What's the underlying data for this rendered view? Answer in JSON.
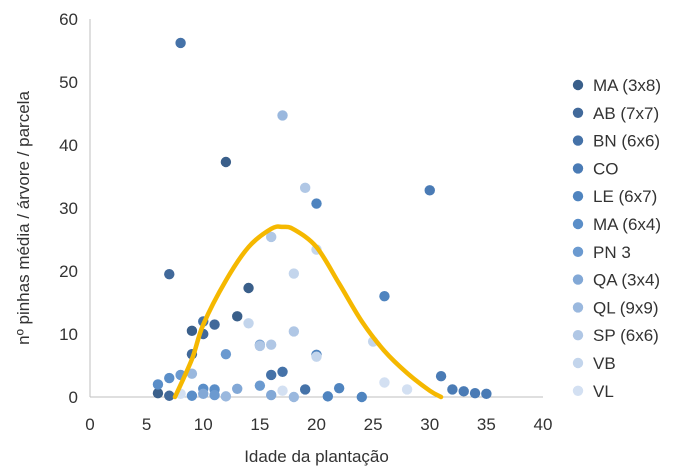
{
  "chart_data": {
    "type": "scatter",
    "title": "",
    "xlabel": "Idade da plantação",
    "ylabel": "nº pinhas média / árvore / parcela",
    "xlim": [
      0,
      40
    ],
    "ylim": [
      0,
      60
    ],
    "xticks": [
      "0",
      "5",
      "10",
      "15",
      "20",
      "25",
      "30",
      "35",
      "40"
    ],
    "yticks": [
      "0",
      "10",
      "20",
      "30",
      "40",
      "50",
      "60"
    ],
    "grid": false,
    "legend_position": "right",
    "series": [
      {
        "name": "MA (3x8)",
        "color": "#3a5f8a",
        "points": [
          [
            6,
            0.6
          ],
          [
            9,
            10.5
          ],
          [
            12,
            37.3
          ],
          [
            14,
            17.3
          ],
          [
            13,
            12.8
          ]
        ]
      },
      {
        "name": "AB (7x7)",
        "color": "#41699a",
        "points": [
          [
            7,
            0.2
          ],
          [
            10,
            10
          ],
          [
            11,
            11.5
          ],
          [
            7,
            19.5
          ],
          [
            9,
            6.8
          ]
        ]
      },
      {
        "name": "BN (6x6)",
        "color": "#4572a8",
        "points": [
          [
            8,
            56.2
          ],
          [
            10,
            12
          ],
          [
            17,
            4
          ],
          [
            16,
            3.5
          ],
          [
            19,
            1.2
          ]
        ]
      },
      {
        "name": "CO",
        "color": "#4a7bb5",
        "points": [
          [
            30,
            32.8
          ],
          [
            31,
            3.3
          ],
          [
            32,
            1.2
          ],
          [
            33,
            0.9
          ],
          [
            34,
            0.6
          ],
          [
            35,
            0.5
          ]
        ]
      },
      {
        "name": "LE (6x7)",
        "color": "#4f84bf",
        "points": [
          [
            20,
            30.7
          ],
          [
            26,
            16
          ],
          [
            20,
            6.7
          ],
          [
            22,
            1.4
          ],
          [
            21,
            0.1
          ],
          [
            24,
            0
          ]
        ]
      },
      {
        "name": "MA (6x4)",
        "color": "#5a8ec8",
        "points": [
          [
            6,
            2
          ],
          [
            7,
            3
          ],
          [
            10,
            1.3
          ],
          [
            11,
            1.2
          ],
          [
            9,
            0.2
          ]
        ]
      },
      {
        "name": "PN 3",
        "color": "#6b9ad0",
        "points": [
          [
            12,
            6.8
          ],
          [
            15,
            1.8
          ],
          [
            11,
            0.3
          ],
          [
            8,
            3.5
          ]
        ]
      },
      {
        "name": "QA (3x4)",
        "color": "#82a8d6",
        "points": [
          [
            15,
            8.3
          ],
          [
            16,
            0.3
          ],
          [
            13,
            1.3
          ],
          [
            10,
            0.5
          ]
        ]
      },
      {
        "name": "QL (9x9)",
        "color": "#9ab8de",
        "points": [
          [
            17,
            44.7
          ],
          [
            9,
            3.7
          ],
          [
            12,
            0.1
          ],
          [
            18,
            0
          ]
        ]
      },
      {
        "name": "SP (6x6)",
        "color": "#b0c7e5",
        "points": [
          [
            19,
            33.2
          ],
          [
            16,
            25.4
          ],
          [
            18,
            10.4
          ],
          [
            16,
            8.3
          ],
          [
            15,
            8.1
          ]
        ]
      },
      {
        "name": "VB",
        "color": "#c3d5ec",
        "points": [
          [
            20,
            23.4
          ],
          [
            18,
            19.6
          ],
          [
            14,
            11.7
          ],
          [
            25,
            8.8
          ],
          [
            20,
            6.4
          ]
        ]
      },
      {
        "name": "VL",
        "color": "#d3e0f2",
        "points": [
          [
            26,
            2.3
          ],
          [
            28,
            1.2
          ],
          [
            17,
            1
          ],
          [
            8,
            0.5
          ]
        ]
      }
    ],
    "trend_line": {
      "color": "#f5b800",
      "points": [
        [
          7.5,
          0
        ],
        [
          9,
          6
        ],
        [
          10,
          11.5
        ],
        [
          12,
          18.5
        ],
        [
          14,
          23.8
        ],
        [
          16,
          26.7
        ],
        [
          17,
          27
        ],
        [
          18,
          26.6
        ],
        [
          20,
          23.8
        ],
        [
          22,
          18
        ],
        [
          24,
          12
        ],
        [
          26,
          7.3
        ],
        [
          28,
          3.8
        ],
        [
          30,
          1
        ],
        [
          31,
          0
        ]
      ]
    }
  }
}
